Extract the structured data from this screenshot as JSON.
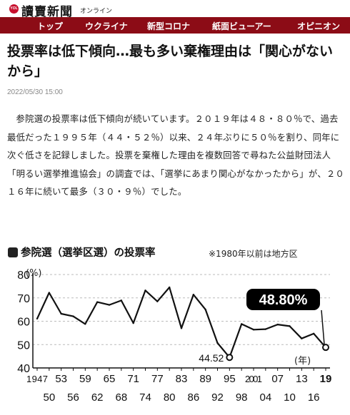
{
  "site": {
    "logo_mark": "YOL",
    "logo_text": "讀賣新聞",
    "logo_sub": "オンライン"
  },
  "nav": {
    "items": [
      "トップ",
      "ウクライナ",
      "新型コロナ",
      "紙面ビューアー",
      "オピニオン"
    ]
  },
  "article": {
    "headline": "投票率は低下傾向…最も多い棄権理由は「関心がないから」",
    "date": "2022/05/30 15:00",
    "body": "参院選の投票率は低下傾向が続いています。２０１９年は４８・８０％で、過去最低だった１９９５年（４４・５２％）以来、２４年ぶりに５０％を割り、同年に次ぐ低さを記録しました。投票を棄権した理由を複数回答で尋ねた公益財団法人「明るい選挙推進協会」の調査では、「選挙にあまり関心がなかったから」が、２０１６年に続いて最多（３０・９％）でした。"
  },
  "chart_data": {
    "type": "line",
    "title": "参院選（選挙区選）の投票率",
    "note": "※1980年以前は地方区",
    "ylabel": "(%)",
    "unit_label": "(年)",
    "ylim": [
      40,
      80
    ],
    "yticks": [
      "80",
      "70",
      "60",
      "50",
      "40"
    ],
    "x": [
      1947,
      1950,
      1953,
      1956,
      1959,
      1962,
      1965,
      1968,
      1971,
      1974,
      1977,
      1980,
      1983,
      1986,
      1989,
      1992,
      1995,
      1998,
      2001,
      2004,
      2007,
      2010,
      2013,
      2016,
      2019
    ],
    "xtick_labels": [
      "1947",
      "50",
      "53",
      "56",
      "59",
      "62",
      "65",
      "68",
      "71",
      "74",
      "77",
      "80",
      "83",
      "86",
      "89",
      "92",
      "95",
      "98",
      "2001",
      "04",
      "07",
      "10",
      "13",
      "16",
      "19"
    ],
    "values": [
      61.1,
      72.2,
      63.2,
      62.1,
      58.8,
      68.2,
      67.0,
      68.9,
      59.2,
      73.2,
      68.5,
      74.5,
      57.0,
      71.4,
      65.0,
      50.7,
      44.52,
      58.8,
      56.4,
      56.6,
      58.6,
      57.9,
      52.6,
      54.7,
      48.8
    ],
    "annotations": {
      "min_label": "44.52",
      "last_label": "48.80%"
    },
    "colors": {
      "line": "#111111",
      "highlight_box": "#000000",
      "highlight_text": "#ffffff"
    }
  }
}
